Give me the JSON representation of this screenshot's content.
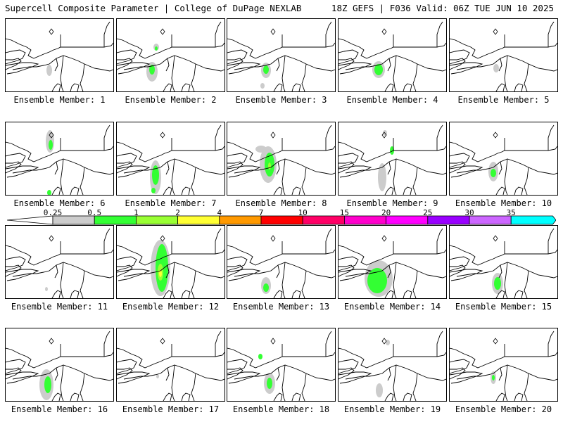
{
  "header": {
    "left": "Supercell Composite Parameter | College of DuPage NEXLAB",
    "right": "18Z GEFS | F036 Valid: 06Z TUE JUN 10 2025"
  },
  "colorbar": {
    "labels": [
      "0.25",
      "0.5",
      "1",
      "2",
      "4",
      "7",
      "10",
      "15",
      "20",
      "25",
      "30",
      "35"
    ],
    "colors": [
      "#cccccc",
      "#33ff33",
      "#99ff33",
      "#ffff33",
      "#ff9900",
      "#ff0000",
      "#ff0066",
      "#ff00cc",
      "#ff00ff",
      "#9900ff",
      "#cc66ff",
      "#00ffff"
    ]
  },
  "panels": [
    {
      "label": "Ensemble Member: 1",
      "blobs": [
        {
          "x": 62,
          "y": 73,
          "rx": 4,
          "ry": 8,
          "c": 0
        }
      ]
    },
    {
      "label": "Ensemble Member: 2",
      "blobs": [
        {
          "x": 50,
          "y": 75,
          "rx": 8,
          "ry": 14,
          "c": 0
        },
        {
          "x": 50,
          "y": 72,
          "rx": 4,
          "ry": 7,
          "c": 1
        },
        {
          "x": 56,
          "y": 40,
          "rx": 4,
          "ry": 5,
          "c": 0
        },
        {
          "x": 56,
          "y": 42,
          "rx": 2,
          "ry": 3,
          "c": 1
        }
      ]
    },
    {
      "label": "Ensemble Member: 3",
      "blobs": [
        {
          "x": 55,
          "y": 73,
          "rx": 7,
          "ry": 11,
          "c": 0
        },
        {
          "x": 55,
          "y": 72,
          "rx": 4,
          "ry": 6,
          "c": 1
        },
        {
          "x": 50,
          "y": 95,
          "rx": 3,
          "ry": 4,
          "c": 0
        }
      ]
    },
    {
      "label": "Ensemble Member: 4",
      "blobs": [
        {
          "x": 57,
          "y": 72,
          "rx": 9,
          "ry": 12,
          "c": 0
        },
        {
          "x": 57,
          "y": 72,
          "rx": 6,
          "ry": 8,
          "c": 1
        }
      ]
    },
    {
      "label": "Ensemble Member: 5",
      "blobs": [
        {
          "x": 66,
          "y": 70,
          "rx": 4,
          "ry": 6,
          "c": 0
        }
      ]
    },
    {
      "label": "Ensemble Member: 6",
      "blobs": [
        {
          "x": 63,
          "y": 27,
          "rx": 6,
          "ry": 16,
          "c": 0
        },
        {
          "x": 64,
          "y": 32,
          "rx": 3,
          "ry": 7,
          "c": 1
        },
        {
          "x": 62,
          "y": 100,
          "rx": 3,
          "ry": 4,
          "c": 1
        }
      ]
    },
    {
      "label": "Ensemble Member: 7",
      "blobs": [
        {
          "x": 55,
          "y": 78,
          "rx": 8,
          "ry": 24,
          "c": 0
        },
        {
          "x": 55,
          "y": 75,
          "rx": 5,
          "ry": 14,
          "c": 1
        },
        {
          "x": 52,
          "y": 97,
          "rx": 3,
          "ry": 4,
          "c": 1
        }
      ]
    },
    {
      "label": "Ensemble Member: 8",
      "blobs": [
        {
          "x": 58,
          "y": 60,
          "rx": 12,
          "ry": 26,
          "c": 0
        },
        {
          "x": 60,
          "y": 60,
          "rx": 7,
          "ry": 17,
          "c": 1
        },
        {
          "x": 60,
          "y": 62,
          "rx": 2,
          "ry": 5,
          "c": 2
        },
        {
          "x": 48,
          "y": 38,
          "rx": 8,
          "ry": 5,
          "c": 0
        }
      ]
    },
    {
      "label": "Ensemble Member: 9",
      "blobs": [
        {
          "x": 62,
          "y": 78,
          "rx": 6,
          "ry": 20,
          "c": 0
        },
        {
          "x": 76,
          "y": 40,
          "rx": 3,
          "ry": 6,
          "c": 1
        },
        {
          "x": 66,
          "y": 15,
          "rx": 3,
          "ry": 4,
          "c": 0
        }
      ]
    },
    {
      "label": "Ensemble Member: 10",
      "blobs": [
        {
          "x": 62,
          "y": 70,
          "rx": 7,
          "ry": 14,
          "c": 0
        },
        {
          "x": 62,
          "y": 72,
          "rx": 4,
          "ry": 6,
          "c": 1
        }
      ]
    },
    {
      "label": "Ensemble Member: 11",
      "blobs": [
        {
          "x": 58,
          "y": 90,
          "rx": 2,
          "ry": 3,
          "c": 0
        }
      ]
    },
    {
      "label": "Ensemble Member: 12",
      "blobs": [
        {
          "x": 62,
          "y": 60,
          "rx": 14,
          "ry": 40,
          "c": 0
        },
        {
          "x": 64,
          "y": 60,
          "rx": 9,
          "ry": 34,
          "c": 1
        },
        {
          "x": 62,
          "y": 66,
          "rx": 4,
          "ry": 12,
          "c": 2
        },
        {
          "x": 62,
          "y": 68,
          "rx": 2,
          "ry": 5,
          "c": 3
        }
      ]
    },
    {
      "label": "Ensemble Member: 13",
      "blobs": [
        {
          "x": 55,
          "y": 85,
          "rx": 7,
          "ry": 12,
          "c": 0
        },
        {
          "x": 55,
          "y": 88,
          "rx": 4,
          "ry": 6,
          "c": 1
        }
      ]
    },
    {
      "label": "Ensemble Member: 14",
      "blobs": [
        {
          "x": 57,
          "y": 75,
          "rx": 20,
          "ry": 26,
          "c": 0
        },
        {
          "x": 55,
          "y": 78,
          "rx": 14,
          "ry": 18,
          "c": 1
        }
      ]
    },
    {
      "label": "Ensemble Member: 15",
      "blobs": [
        {
          "x": 68,
          "y": 82,
          "rx": 8,
          "ry": 15,
          "c": 0
        },
        {
          "x": 68,
          "y": 82,
          "rx": 5,
          "ry": 9,
          "c": 1
        }
      ]
    },
    {
      "label": "Ensemble Member: 16",
      "blobs": [
        {
          "x": 58,
          "y": 80,
          "rx": 10,
          "ry": 22,
          "c": 0
        },
        {
          "x": 60,
          "y": 80,
          "rx": 5,
          "ry": 12,
          "c": 1
        }
      ]
    },
    {
      "label": "Ensemble Member: 17",
      "blobs": [
        {
          "x": 58,
          "y": 68,
          "rx": 2,
          "ry": 3,
          "c": 0
        }
      ]
    },
    {
      "label": "Ensemble Member: 18",
      "blobs": [
        {
          "x": 60,
          "y": 78,
          "rx": 8,
          "ry": 15,
          "c": 0
        },
        {
          "x": 60,
          "y": 78,
          "rx": 4,
          "ry": 8,
          "c": 1
        },
        {
          "x": 47,
          "y": 40,
          "rx": 3,
          "ry": 4,
          "c": 1
        }
      ]
    },
    {
      "label": "Ensemble Member: 19",
      "blobs": [
        {
          "x": 58,
          "y": 88,
          "rx": 5,
          "ry": 10,
          "c": 0
        },
        {
          "x": 70,
          "y": 20,
          "rx": 3,
          "ry": 4,
          "c": 0
        }
      ]
    },
    {
      "label": "Ensemble Member: 20",
      "blobs": [
        {
          "x": 62,
          "y": 70,
          "rx": 4,
          "ry": 9,
          "c": 0
        },
        {
          "x": 62,
          "y": 70,
          "rx": 2,
          "ry": 4,
          "c": 1
        }
      ]
    }
  ]
}
